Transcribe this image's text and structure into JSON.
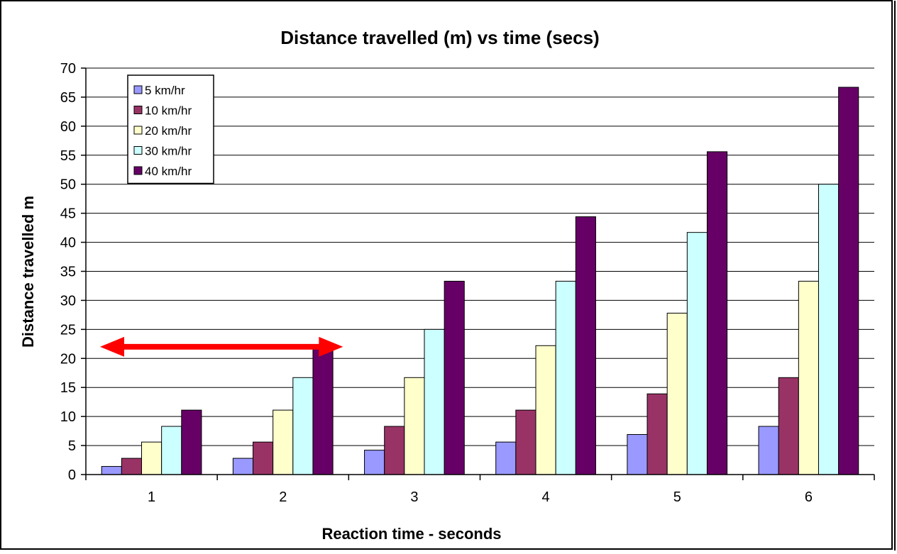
{
  "chart_data": {
    "type": "bar",
    "title": "Distance travelled (m) vs time (secs)",
    "xlabel": "Reaction time - seconds",
    "ylabel": "Distance travelled m",
    "categories": [
      "1",
      "2",
      "3",
      "4",
      "5",
      "6"
    ],
    "ylim": [
      0,
      70
    ],
    "yticks": [
      0,
      5,
      10,
      15,
      20,
      25,
      30,
      35,
      40,
      45,
      50,
      55,
      60,
      65,
      70
    ],
    "grid": true,
    "legend_position": "top-left",
    "series": [
      {
        "name": "5 km/hr",
        "color": "#9999ff",
        "values": [
          1.4,
          2.8,
          4.2,
          5.6,
          6.9,
          8.3
        ]
      },
      {
        "name": "10 km/hr",
        "color": "#993366",
        "values": [
          2.8,
          5.6,
          8.3,
          11.1,
          13.9,
          16.7
        ]
      },
      {
        "name": "20 km/hr",
        "color": "#ffffcc",
        "values": [
          5.6,
          11.1,
          16.7,
          22.2,
          27.8,
          33.3
        ]
      },
      {
        "name": "30 km/hr",
        "color": "#ccffff",
        "values": [
          8.3,
          16.7,
          25.0,
          33.3,
          41.7,
          50.0
        ]
      },
      {
        "name": "40 km/hr",
        "color": "#660066",
        "values": [
          11.1,
          22.2,
          33.3,
          44.4,
          55.6,
          66.7
        ]
      }
    ],
    "annotations": [
      {
        "type": "double-arrow",
        "color": "#ff0000",
        "x_from": "1",
        "x_to": "2",
        "y": 22
      }
    ]
  }
}
